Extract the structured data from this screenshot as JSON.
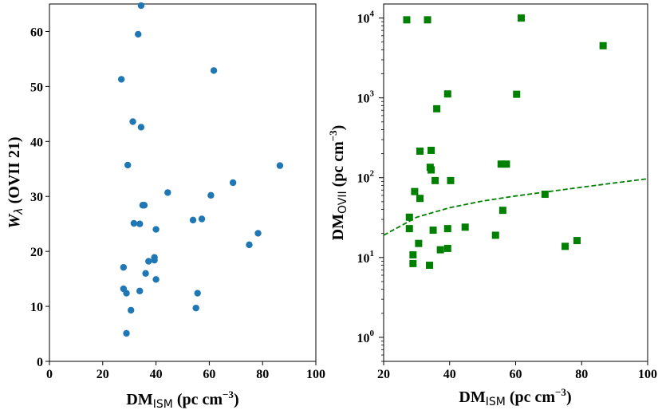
{
  "chart_data": [
    {
      "type": "scatter",
      "marker": "circle",
      "color": "#1f77b4",
      "xlabel_main": "DM",
      "xlabel_sub": "ISM",
      "xlabel_units": " (pc cm",
      "xlabel_exp": "−3",
      "xlabel_close": ")",
      "ylabel_main": "W",
      "ylabel_sub": "λ",
      "ylabel_rest": " (OVII 21)",
      "xlim": [
        0,
        100
      ],
      "ylim": [
        0,
        65
      ],
      "xticks": [
        0,
        20,
        40,
        60,
        80,
        100
      ],
      "xtick_labels": [
        "0",
        "20",
        "40",
        "60",
        "80",
        "100"
      ],
      "yticks": [
        0,
        10,
        20,
        30,
        40,
        50,
        60
      ],
      "ytick_labels": [
        "0",
        "10",
        "20",
        "30",
        "40",
        "50",
        "60"
      ],
      "points": [
        [
          34.4,
          64.7
        ],
        [
          33.3,
          59.5
        ],
        [
          27.0,
          51.3
        ],
        [
          61.7,
          52.9
        ],
        [
          31.3,
          43.6
        ],
        [
          34.4,
          42.6
        ],
        [
          29.4,
          35.7
        ],
        [
          86.5,
          35.6
        ],
        [
          68.9,
          32.5
        ],
        [
          44.4,
          30.7
        ],
        [
          60.6,
          30.2
        ],
        [
          35.0,
          28.4
        ],
        [
          35.6,
          28.4
        ],
        [
          57.2,
          25.9
        ],
        [
          53.9,
          25.7
        ],
        [
          31.7,
          25.1
        ],
        [
          33.9,
          25.0
        ],
        [
          40.0,
          24.0
        ],
        [
          78.3,
          23.3
        ],
        [
          75.0,
          21.2
        ],
        [
          39.4,
          18.9
        ],
        [
          37.2,
          18.2
        ],
        [
          39.4,
          18.4
        ],
        [
          27.8,
          17.1
        ],
        [
          36.1,
          16.0
        ],
        [
          40.0,
          14.9
        ],
        [
          27.8,
          13.2
        ],
        [
          33.9,
          12.8
        ],
        [
          28.9,
          12.4
        ],
        [
          55.6,
          12.4
        ],
        [
          30.6,
          9.3
        ],
        [
          55.0,
          9.7
        ],
        [
          28.9,
          5.1
        ]
      ]
    },
    {
      "type": "scatter",
      "marker": "square",
      "color": "#008000",
      "yscale": "log",
      "xlabel_main": "DM",
      "xlabel_sub": "ISM",
      "xlabel_units": " (pc cm",
      "xlabel_exp": "−3",
      "xlabel_close": ")",
      "ylabel_main": "DM",
      "ylabel_sub": "OVII",
      "ylabel_units": " (pc cm",
      "ylabel_exp": "−3",
      "ylabel_close": ")",
      "xlim": [
        20,
        100
      ],
      "ylim": [
        0.5,
        15000
      ],
      "xticks": [
        20,
        40,
        60,
        80,
        100
      ],
      "xtick_labels": [
        "20",
        "40",
        "60",
        "80",
        "100"
      ],
      "yticks": [
        1,
        10,
        100,
        1000,
        10000
      ],
      "ytick_bases": [
        "10",
        "10",
        "10",
        "10",
        "10"
      ],
      "ytick_exps": [
        "0",
        "1",
        "2",
        "3",
        "4"
      ],
      "points": [
        [
          27.0,
          9500
        ],
        [
          33.3,
          9500
        ],
        [
          61.7,
          10000
        ],
        [
          86.5,
          4500
        ],
        [
          39.4,
          1120
        ],
        [
          60.3,
          1110
        ],
        [
          36.1,
          730
        ],
        [
          31.0,
          215
        ],
        [
          34.4,
          220
        ],
        [
          34.1,
          135
        ],
        [
          34.4,
          125
        ],
        [
          55.6,
          148
        ],
        [
          57.2,
          148
        ],
        [
          35.6,
          92
        ],
        [
          40.3,
          92
        ],
        [
          29.4,
          67
        ],
        [
          31.0,
          55
        ],
        [
          68.9,
          62
        ],
        [
          27.8,
          32
        ],
        [
          56.1,
          39
        ],
        [
          27.8,
          23
        ],
        [
          35.0,
          22
        ],
        [
          39.4,
          23
        ],
        [
          44.7,
          24
        ],
        [
          53.9,
          19
        ],
        [
          30.6,
          15
        ],
        [
          75.0,
          13.8
        ],
        [
          78.6,
          16.3
        ],
        [
          37.2,
          12.5
        ],
        [
          39.4,
          13
        ],
        [
          28.9,
          10.8
        ],
        [
          28.9,
          8.4
        ],
        [
          33.9,
          8.0
        ]
      ],
      "curve": {
        "style": "dashed",
        "x": [
          20,
          30,
          40,
          50,
          60,
          70,
          80,
          90,
          100
        ],
        "y": [
          19,
          32,
          42,
          51,
          59,
          67,
          76,
          86,
          97
        ]
      }
    }
  ]
}
